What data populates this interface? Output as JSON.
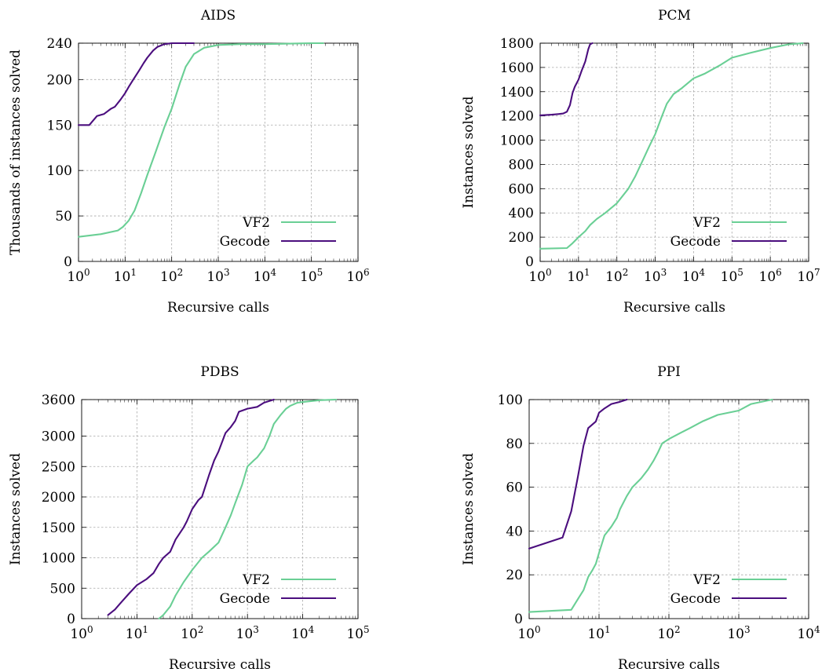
{
  "colors": {
    "VF2": "#6acf95",
    "Gecode": "#4b0e7e"
  },
  "chart_data": [
    {
      "type": "line",
      "title": "AIDS",
      "xlabel": "Recursive calls",
      "ylabel": "Thousands of instances solved",
      "xscale": "log",
      "xlim": [
        1,
        1000000
      ],
      "ylim": [
        0,
        240
      ],
      "xticks": [
        1,
        10,
        100,
        1000,
        10000,
        100000,
        1000000
      ],
      "xtick_labels": [
        [
          "10",
          "0"
        ],
        [
          "10",
          "1"
        ],
        [
          "10",
          "2"
        ],
        [
          "10",
          "3"
        ],
        [
          "10",
          "4"
        ],
        [
          "10",
          "5"
        ],
        [
          "10",
          "6"
        ]
      ],
      "yticks": [
        0,
        50,
        100,
        150,
        200,
        240
      ],
      "ytick_labels": [
        "0",
        "50",
        "100",
        "150",
        "200",
        "240"
      ],
      "legend_position": "bottom-right",
      "series": [
        {
          "name": "VF2",
          "x": [
            1,
            3,
            7,
            9,
            12,
            16,
            22,
            30,
            45,
            70,
            100,
            150,
            200,
            300,
            500,
            1000,
            3000,
            10000,
            100000,
            180000
          ],
          "y": [
            27,
            30,
            34,
            38,
            45,
            56,
            75,
            95,
            120,
            148,
            168,
            196,
            214,
            228,
            235,
            238,
            239,
            239,
            240,
            240
          ]
        },
        {
          "name": "Gecode",
          "x": [
            1,
            1.7,
            2.5,
            3.5,
            5,
            6,
            8,
            10,
            12,
            15,
            20,
            25,
            30,
            40,
            50,
            70,
            100,
            150,
            200,
            300
          ],
          "y": [
            150,
            150,
            160,
            162,
            168,
            170,
            178,
            185,
            192,
            200,
            210,
            218,
            224,
            232,
            236,
            239,
            240,
            240,
            240,
            240
          ]
        }
      ]
    },
    {
      "type": "line",
      "title": "PCM",
      "xlabel": "Recursive calls",
      "ylabel": "Instances solved",
      "xscale": "log",
      "xlim": [
        1,
        10000000
      ],
      "ylim": [
        0,
        1800
      ],
      "xticks": [
        1,
        10,
        100,
        1000,
        10000,
        100000,
        1000000,
        10000000
      ],
      "xtick_labels": [
        [
          "10",
          "0"
        ],
        [
          "10",
          "1"
        ],
        [
          "10",
          "2"
        ],
        [
          "10",
          "3"
        ],
        [
          "10",
          "4"
        ],
        [
          "10",
          "5"
        ],
        [
          "10",
          "6"
        ],
        [
          "10",
          "7"
        ]
      ],
      "yticks": [
        0,
        200,
        400,
        600,
        800,
        1000,
        1200,
        1400,
        1600,
        1800
      ],
      "ytick_labels": [
        "0",
        "200",
        "400",
        "600",
        "800",
        "1000",
        "1200",
        "1400",
        "1600",
        "1800"
      ],
      "legend_position": "bottom-right",
      "series": [
        {
          "name": "VF2",
          "x": [
            1,
            5,
            7,
            10,
            15,
            20,
            30,
            50,
            100,
            200,
            300,
            500,
            700,
            1000,
            1500,
            2000,
            3000,
            5000,
            10000,
            20000,
            50000,
            100000,
            300000,
            1000000,
            3000000,
            7000000
          ],
          "y": [
            105,
            110,
            150,
            200,
            250,
            300,
            350,
            400,
            480,
            600,
            700,
            850,
            950,
            1050,
            1200,
            1300,
            1380,
            1430,
            1510,
            1550,
            1620,
            1680,
            1720,
            1760,
            1790,
            1800
          ]
        },
        {
          "name": "Gecode",
          "x": [
            1,
            2,
            3,
            4,
            5,
            6,
            7,
            8,
            10,
            12,
            15,
            18,
            20,
            23
          ],
          "y": [
            1205,
            1210,
            1215,
            1220,
            1235,
            1290,
            1390,
            1440,
            1500,
            1570,
            1650,
            1750,
            1790,
            1800
          ]
        }
      ]
    },
    {
      "type": "line",
      "title": "PDBS",
      "xlabel": "Recursive calls",
      "ylabel": "Instances solved",
      "xscale": "log",
      "xlim": [
        1,
        100000
      ],
      "ylim": [
        0,
        3600
      ],
      "xticks": [
        1,
        10,
        100,
        1000,
        10000,
        100000
      ],
      "xtick_labels": [
        [
          "10",
          "0"
        ],
        [
          "10",
          "1"
        ],
        [
          "10",
          "2"
        ],
        [
          "10",
          "3"
        ],
        [
          "10",
          "4"
        ],
        [
          "10",
          "5"
        ]
      ],
      "yticks": [
        0,
        500,
        1000,
        1500,
        2000,
        2500,
        3000,
        3600
      ],
      "ytick_labels": [
        "0",
        "500",
        "1000",
        "1500",
        "2000",
        "2500",
        "3000",
        "3600"
      ],
      "legend_position": "bottom-right",
      "series": [
        {
          "name": "VF2",
          "x": [
            25,
            30,
            40,
            50,
            70,
            100,
            150,
            200,
            300,
            400,
            500,
            600,
            800,
            1000,
            1300,
            1500,
            2000,
            2500,
            3000,
            4000,
            5000,
            6000,
            8000,
            10000,
            20000,
            40000
          ],
          "y": [
            0,
            60,
            200,
            380,
            600,
            800,
            1000,
            1100,
            1250,
            1500,
            1700,
            1900,
            2200,
            2500,
            2600,
            2650,
            2800,
            3000,
            3200,
            3350,
            3450,
            3500,
            3550,
            3560,
            3590,
            3600
          ]
        },
        {
          "name": "Gecode",
          "x": [
            3,
            4,
            5,
            7,
            10,
            15,
            20,
            25,
            30,
            40,
            50,
            70,
            80,
            100,
            130,
            150,
            200,
            250,
            300,
            400,
            500,
            600,
            700,
            1000,
            1500,
            2000,
            3000
          ],
          "y": [
            60,
            150,
            250,
            400,
            550,
            650,
            750,
            900,
            1000,
            1100,
            1300,
            1500,
            1600,
            1800,
            1950,
            2000,
            2350,
            2600,
            2750,
            3050,
            3150,
            3250,
            3400,
            3450,
            3480,
            3550,
            3600
          ]
        }
      ]
    },
    {
      "type": "line",
      "title": "PPI",
      "xlabel": "Recursive calls",
      "ylabel": "Instances solved",
      "xscale": "log",
      "xlim": [
        1,
        10000
      ],
      "ylim": [
        0,
        100
      ],
      "xticks": [
        1,
        10,
        100,
        1000,
        10000
      ],
      "xtick_labels": [
        [
          "10",
          "0"
        ],
        [
          "10",
          "1"
        ],
        [
          "10",
          "2"
        ],
        [
          "10",
          "3"
        ],
        [
          "10",
          "4"
        ]
      ],
      "yticks": [
        0,
        20,
        40,
        60,
        80,
        100
      ],
      "ytick_labels": [
        "0",
        "20",
        "40",
        "60",
        "80",
        "100"
      ],
      "legend_position": "bottom-right",
      "series": [
        {
          "name": "VF2",
          "x": [
            1,
            2,
            4,
            5,
            6,
            7,
            8,
            9,
            10,
            12,
            15,
            18,
            20,
            25,
            30,
            40,
            50,
            60,
            70,
            80,
            100,
            150,
            200,
            300,
            500,
            1000,
            1500,
            3000
          ],
          "y": [
            3,
            3.5,
            4,
            9,
            13,
            19,
            22,
            25,
            30,
            38,
            42,
            46,
            50,
            56,
            60,
            64,
            68,
            72,
            76,
            80,
            82,
            85,
            87,
            90,
            93,
            95,
            98,
            100
          ]
        },
        {
          "name": "Gecode",
          "x": [
            1,
            3,
            4,
            5,
            6,
            7,
            9,
            10,
            12,
            15,
            20,
            25
          ],
          "y": [
            32,
            37,
            49,
            65,
            79,
            87,
            90,
            94,
            96,
            98,
            99,
            100
          ]
        }
      ]
    }
  ]
}
